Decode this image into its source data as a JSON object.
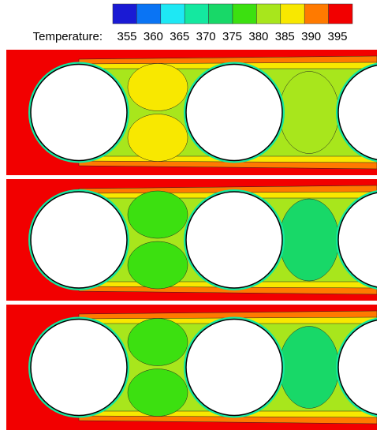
{
  "chart_data": {
    "type": "contour",
    "legend_title": "Temperature:",
    "levels": [
      355,
      360,
      365,
      370,
      375,
      380,
      385,
      390,
      395
    ],
    "colors": [
      "#1a1ad4",
      "#0a74f4",
      "#1ee8f4",
      "#14e8a0",
      "#18d868",
      "#3ce010",
      "#a8e61c",
      "#f8e800",
      "#ff7a00",
      "#f20000"
    ]
  }
}
